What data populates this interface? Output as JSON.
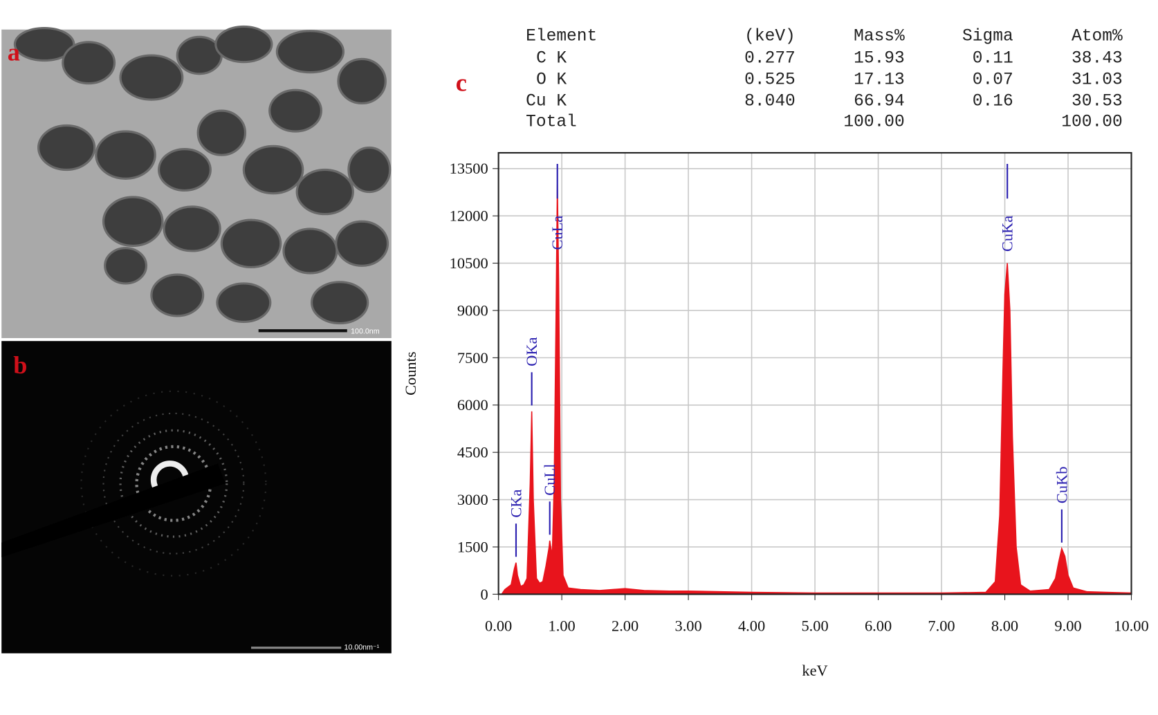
{
  "panels": {
    "a": "a",
    "b": "b",
    "c": "c"
  },
  "scale_bars": {
    "a": "100.0nm",
    "b": "10.00nm⁻¹"
  },
  "table": {
    "header": [
      "Element",
      "(keV)",
      "Mass%",
      "Sigma",
      "Atom%"
    ],
    "rows": [
      [
        "C K",
        "0.277",
        "15.93",
        "0.11",
        "38.43"
      ],
      [
        "O K",
        "0.525",
        "17.13",
        "0.07",
        "31.03"
      ],
      [
        "Cu K",
        "8.040",
        "66.94",
        "0.16",
        "30.53"
      ],
      [
        "Total",
        null,
        "100.00",
        null,
        "100.00"
      ]
    ]
  },
  "chart_data": {
    "type": "area",
    "xlabel": "keV",
    "ylabel": "Counts",
    "color": "#e8141c",
    "grid": true,
    "xlim": [
      0,
      10
    ],
    "ylim": [
      0,
      14000
    ],
    "xticks": [
      {
        "value": 0,
        "label": "0.00"
      },
      {
        "value": 1,
        "label": "1.00"
      },
      {
        "value": 2,
        "label": "2.00"
      },
      {
        "value": 3,
        "label": "3.00"
      },
      {
        "value": 4,
        "label": "4.00"
      },
      {
        "value": 5,
        "label": "5.00"
      },
      {
        "value": 6,
        "label": "6.00"
      },
      {
        "value": 7,
        "label": "7.00"
      },
      {
        "value": 8,
        "label": "8.00"
      },
      {
        "value": 9,
        "label": "9.00"
      },
      {
        "value": 10,
        "label": "10.00"
      }
    ],
    "yticks": [
      0,
      1500,
      3000,
      4500,
      6000,
      7500,
      9000,
      10500,
      12000,
      13500
    ],
    "x": [
      0.05,
      0.1,
      0.2,
      0.25,
      0.277,
      0.3,
      0.35,
      0.4,
      0.45,
      0.5,
      0.525,
      0.55,
      0.6,
      0.65,
      0.7,
      0.75,
      0.8,
      0.81,
      0.85,
      0.88,
      0.91,
      0.93,
      0.95,
      0.98,
      1.02,
      1.1,
      1.3,
      1.6,
      2.0,
      2.3,
      2.7,
      3.0,
      3.5,
      4.0,
      5.0,
      6.0,
      7.0,
      7.7,
      7.85,
      7.92,
      7.97,
      8.0,
      8.04,
      8.08,
      8.12,
      8.18,
      8.25,
      8.4,
      8.7,
      8.8,
      8.85,
      8.9,
      8.95,
      9.0,
      9.08,
      9.3,
      9.6,
      10.0
    ],
    "values": [
      0,
      150,
      300,
      800,
      1000,
      600,
      250,
      300,
      500,
      3500,
      5800,
      3000,
      500,
      350,
      400,
      900,
      1500,
      1700,
      1200,
      3500,
      9000,
      13000,
      10000,
      3000,
      600,
      200,
      150,
      120,
      180,
      120,
      100,
      100,
      80,
      60,
      40,
      40,
      40,
      60,
      400,
      2500,
      7000,
      9500,
      10500,
      9000,
      5000,
      1500,
      300,
      100,
      150,
      500,
      1000,
      1450,
      1200,
      600,
      200,
      80,
      60,
      40
    ],
    "peak_labels": [
      {
        "label": "CKa",
        "x": 0.277,
        "y": 1000
      },
      {
        "label": "OKa",
        "x": 0.525,
        "y": 5800
      },
      {
        "label": "CuLl",
        "x": 0.81,
        "y": 1700
      },
      {
        "label": "CuLa",
        "x": 0.93,
        "y": 13000
      },
      {
        "label": "CuKa",
        "x": 8.04,
        "y": 10500
      },
      {
        "label": "CuKb",
        "x": 8.9,
        "y": 1450
      }
    ]
  }
}
